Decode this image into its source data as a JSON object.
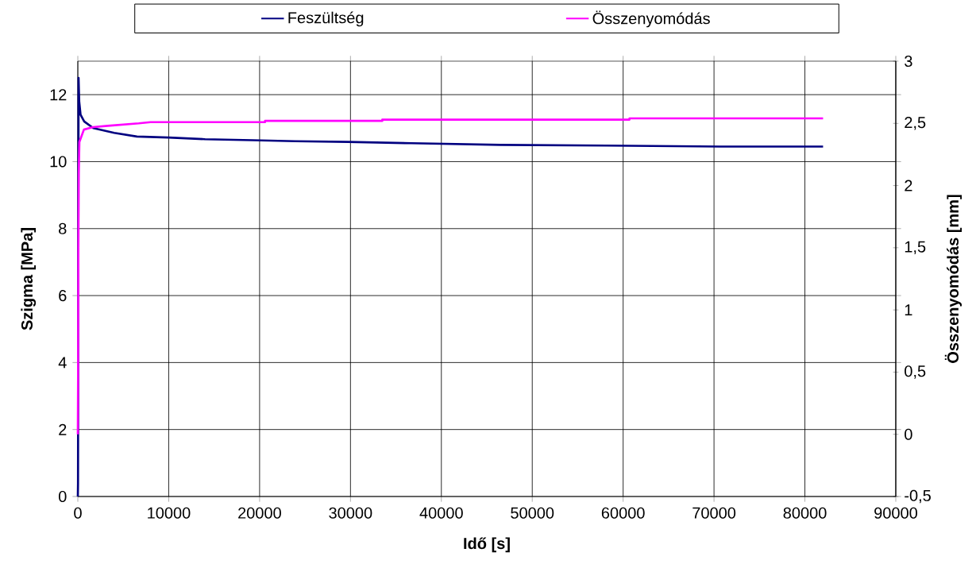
{
  "chart_data": {
    "type": "line",
    "xlabel": "Idő [s]",
    "ylabel": "Szigma [MPa]",
    "y2label": "Összenyomódás [mm]",
    "xlim": [
      0,
      90000
    ],
    "xticks": [
      0,
      10000,
      20000,
      30000,
      40000,
      50000,
      60000,
      70000,
      80000,
      90000
    ],
    "ylim": [
      0,
      13
    ],
    "yticks": [
      0,
      2,
      4,
      6,
      8,
      10,
      12
    ],
    "y2lim": [
      -0.5,
      3
    ],
    "y2ticks": [
      {
        "value": -0.5,
        "label": "-0,5"
      },
      0,
      {
        "value": 0.5,
        "label": "0,5"
      },
      1,
      {
        "value": 1.5,
        "label": "1,5"
      },
      2,
      {
        "value": 2.5,
        "label": "2,5"
      },
      3
    ],
    "grid": true,
    "legend": "top",
    "series": [
      {
        "name": "Feszültség",
        "color": "#000080",
        "x": [
          0,
          20,
          80,
          150,
          300,
          700,
          1700,
          4000,
          6500,
          10000,
          14000,
          19260,
          23900,
          29700,
          36700,
          46500,
          58200,
          70700,
          82000
        ],
        "values": [
          0,
          0.4,
          12.5,
          11.8,
          11.4,
          11.2,
          11.0,
          10.86,
          10.75,
          10.72,
          10.67,
          10.64,
          10.61,
          10.59,
          10.55,
          10.5,
          10.48,
          10.45,
          10.45
        ]
      },
      {
        "name": "Összenyomódás",
        "color": "#ff00ff",
        "axis": "y2",
        "x": [
          0,
          30,
          60,
          100,
          170,
          670,
          1670,
          3300,
          6700,
          8000,
          20600,
          20600,
          33500,
          33500,
          60700,
          60700,
          82000
        ],
        "values": [
          0,
          0.5,
          1.5,
          2.1,
          2.35,
          2.45,
          2.47,
          2.48,
          2.5,
          2.51,
          2.51,
          2.52,
          2.52,
          2.53,
          2.53,
          2.54,
          2.54
        ]
      }
    ]
  }
}
